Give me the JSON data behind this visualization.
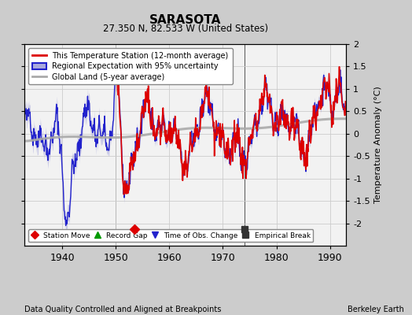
{
  "title": "SARASOTA",
  "subtitle": "27.350 N, 82.533 W (United States)",
  "ylabel": "Temperature Anomaly (°C)",
  "xlabel_left": "Data Quality Controlled and Aligned at Breakpoints",
  "xlabel_right": "Berkeley Earth",
  "ylim": [
    -2.5,
    2.0
  ],
  "xlim": [
    1933,
    1993
  ],
  "xticks": [
    1940,
    1950,
    1960,
    1970,
    1980,
    1990
  ],
  "yticks": [
    -2,
    -1.5,
    -1,
    -0.5,
    0,
    0.5,
    1,
    1.5,
    2
  ],
  "bg_color": "#cccccc",
  "plot_bg_color": "#f2f2f2",
  "station_move_x": 1953.5,
  "station_move_y": -2.13,
  "empirical_break_x": 1974.0,
  "empirical_break_y": -2.13,
  "vert_line_x1": 1950.0,
  "vert_line_x2": 1974.0,
  "red_color": "#dd0000",
  "blue_color": "#2222cc",
  "band_color": "#aaaadd",
  "gray_color": "#aaaaaa",
  "grid_color": "#cccccc",
  "legend_items": [
    {
      "label": "This Temperature Station (12-month average)"
    },
    {
      "label": "Regional Expectation with 95% uncertainty"
    },
    {
      "label": "Global Land (5-year average)"
    }
  ],
  "marker_legend": [
    {
      "label": "Station Move",
      "marker": "D",
      "color": "#dd0000"
    },
    {
      "label": "Record Gap",
      "marker": "^",
      "color": "#009900"
    },
    {
      "label": "Time of Obs. Change",
      "marker": "v",
      "color": "#2222cc"
    },
    {
      "label": "Empirical Break",
      "marker": "s",
      "color": "#333333"
    }
  ]
}
